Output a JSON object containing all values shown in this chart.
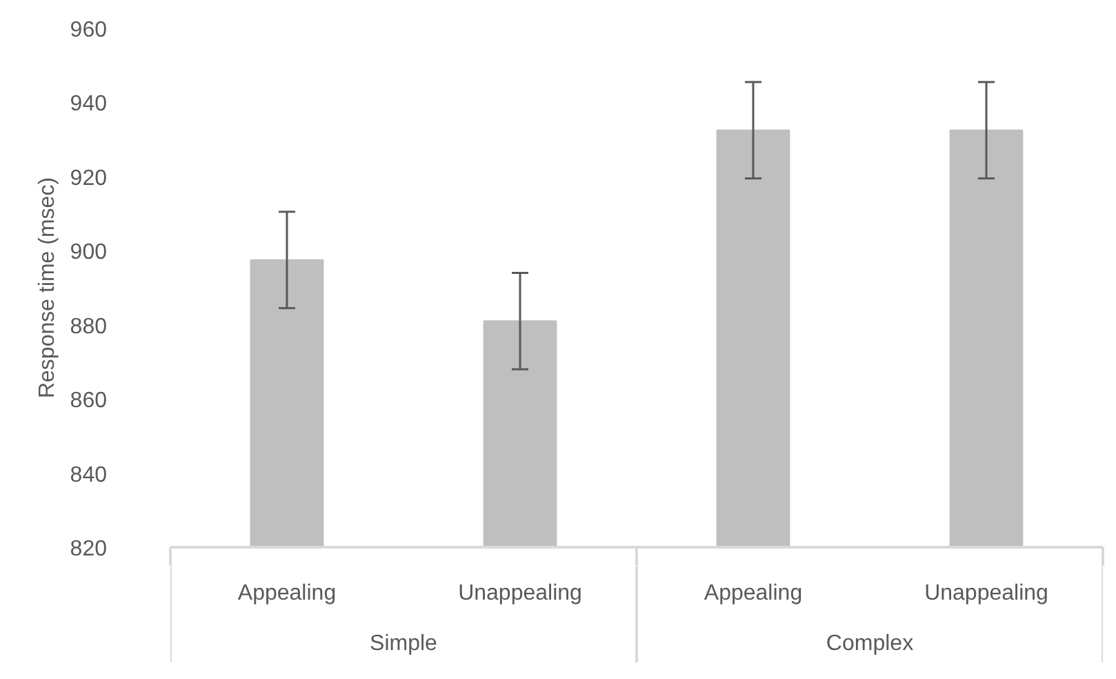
{
  "chart_data": {
    "type": "bar",
    "ylabel": "Response time (msec)",
    "categories": [
      "Appealing",
      "Unappealing",
      "Appealing",
      "Unappealing"
    ],
    "values": [
      897.5,
      881,
      932.5,
      932.5
    ],
    "errors": [
      13,
      13,
      13,
      13
    ],
    "color": "#bfbfbf",
    "ylim": [
      820,
      960
    ],
    "yticks": [
      820,
      840,
      860,
      880,
      900,
      920,
      940,
      960
    ],
    "grid": false,
    "annotations": [
      "Simple",
      "Complex"
    ]
  }
}
